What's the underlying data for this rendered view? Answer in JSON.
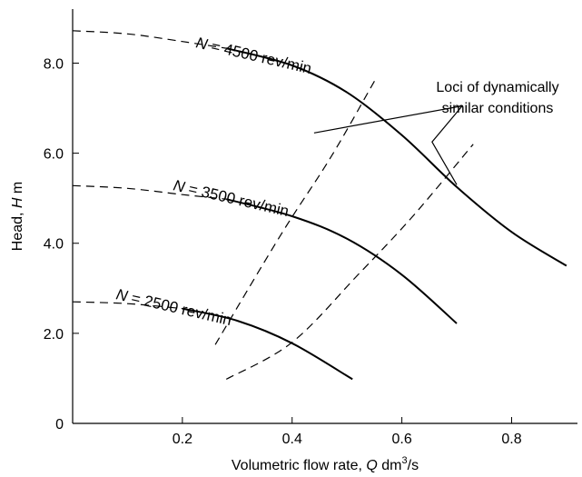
{
  "chart_data": {
    "type": "line",
    "xlabel_prefix": "Volumetric flow rate, ",
    "xlabel_symbol": "Q",
    "xlabel_unit": "dm",
    "xlabel_unit_exp": "3",
    "xlabel_unit_tail": "/s",
    "ylabel_prefix": "Head, ",
    "ylabel_symbol": "H",
    "ylabel_unit": " m",
    "xlim": [
      0,
      0.92
    ],
    "ylim": [
      0,
      9.2
    ],
    "x_ticks": [
      {
        "value": 0.2,
        "label": "0.2"
      },
      {
        "value": 0.4,
        "label": "0.4"
      },
      {
        "value": 0.6,
        "label": "0.6"
      },
      {
        "value": 0.8,
        "label": "0.8"
      }
    ],
    "y_ticks": [
      {
        "value": 0,
        "label": "0"
      },
      {
        "value": 2.0,
        "label": "2.0"
      },
      {
        "value": 4.0,
        "label": "4.0"
      },
      {
        "value": 6.0,
        "label": "6.0"
      },
      {
        "value": 8.0,
        "label": "8.0"
      }
    ],
    "series": [
      {
        "name": "N = 4500 rev/min",
        "label_N": "N",
        "label_rest": " = 4500 rev/min",
        "dashed_points": [
          [
            0.0,
            8.72
          ],
          [
            0.1,
            8.65
          ],
          [
            0.2,
            8.48
          ],
          [
            0.28,
            8.33
          ]
        ],
        "solid_points": [
          [
            0.28,
            8.33
          ],
          [
            0.4,
            7.95
          ],
          [
            0.5,
            7.35
          ],
          [
            0.6,
            6.4
          ],
          [
            0.7,
            5.25
          ],
          [
            0.8,
            4.25
          ],
          [
            0.9,
            3.5
          ]
        ]
      },
      {
        "name": "N = 3500 rev/min",
        "label_N": "N",
        "label_rest": " = 3500 rev/min",
        "dashed_points": [
          [
            0.0,
            5.28
          ],
          [
            0.1,
            5.22
          ],
          [
            0.2,
            5.08
          ],
          [
            0.28,
            4.98
          ]
        ],
        "solid_points": [
          [
            0.28,
            4.98
          ],
          [
            0.4,
            4.6
          ],
          [
            0.5,
            4.1
          ],
          [
            0.6,
            3.3
          ],
          [
            0.7,
            2.22
          ]
        ]
      },
      {
        "name": "N = 2500 rev/min",
        "label_N": "N",
        "label_rest": " = 2500 rev/min",
        "dashed_points": [
          [
            0.0,
            2.7
          ],
          [
            0.1,
            2.66
          ],
          [
            0.2,
            2.55
          ]
        ],
        "solid_points": [
          [
            0.2,
            2.55
          ],
          [
            0.3,
            2.28
          ],
          [
            0.4,
            1.78
          ],
          [
            0.51,
            0.98
          ]
        ]
      }
    ],
    "loci": [
      {
        "name": "locus-1",
        "points": [
          [
            0.26,
            1.75
          ],
          [
            0.38,
            4.2
          ],
          [
            0.47,
            5.9
          ],
          [
            0.55,
            7.6
          ]
        ]
      },
      {
        "name": "locus-2",
        "points": [
          [
            0.28,
            0.98
          ],
          [
            0.4,
            1.8
          ],
          [
            0.52,
            3.3
          ],
          [
            0.62,
            4.6
          ],
          [
            0.73,
            6.2
          ]
        ]
      }
    ],
    "annotation": {
      "line1": "Loci of dynamically",
      "line2": "similar conditions",
      "pointers": [
        {
          "from": [
            0.71,
            7.05
          ],
          "to": [
            0.44,
            6.45
          ]
        },
        {
          "from": [
            0.71,
            7.05
          ],
          "to": [
            0.65,
            6.0
          ]
        }
      ],
      "marker_4500_locus2": [
        0.655,
        6.25
      ],
      "marker_corner": [
        0.7,
        5.3
      ]
    }
  }
}
